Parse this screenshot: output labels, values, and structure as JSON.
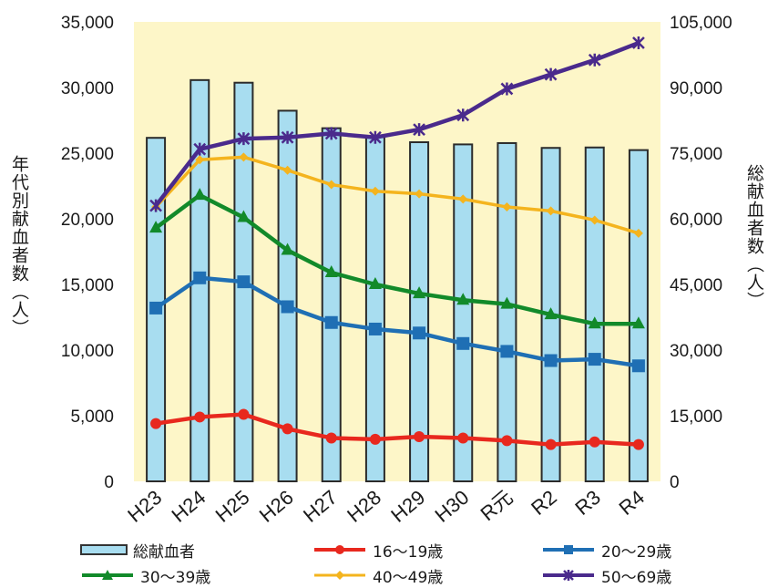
{
  "chart_data": {
    "type": "bar+line",
    "categories": [
      "H23",
      "H24",
      "H25",
      "H26",
      "H27",
      "H28",
      "H29",
      "H30",
      "R元",
      "R2",
      "R3",
      "R4"
    ],
    "left_axis": {
      "label": "年代別献血者数（人）",
      "ylim": [
        0,
        35000
      ],
      "ticks": [
        "0",
        "5,000",
        "10,000",
        "15,000",
        "20,000",
        "25,000",
        "30,000",
        "35,000"
      ]
    },
    "right_axis": {
      "label": "総献血者数（人）",
      "ylim": [
        0,
        105000
      ],
      "ticks": [
        "0",
        "15,000",
        "30,000",
        "45,000",
        "60,000",
        "75,000",
        "90,000",
        "105,000"
      ]
    },
    "bar_series": {
      "name": "総献血者",
      "axis": "right",
      "color": "#a8ddf0",
      "values": [
        78500,
        91700,
        91100,
        84700,
        80700,
        78700,
        77500,
        77000,
        77300,
        76200,
        76300,
        75700
      ]
    },
    "line_series": [
      {
        "name": "16～19歳",
        "color": "#e8281e",
        "marker": "circle",
        "values": [
          4400,
          4900,
          5100,
          4000,
          3300,
          3200,
          3400,
          3300,
          3100,
          2800,
          3000,
          2800
        ]
      },
      {
        "name": "20～29歳",
        "color": "#1f6fb4",
        "marker": "square",
        "values": [
          13200,
          15500,
          15200,
          13300,
          12100,
          11600,
          11300,
          10500,
          9900,
          9200,
          9300,
          8800
        ]
      },
      {
        "name": "30～39歳",
        "color": "#128a2a",
        "marker": "triangle",
        "values": [
          19300,
          21800,
          20100,
          17600,
          15900,
          15000,
          14300,
          13800,
          13500,
          12700,
          12000,
          12000
        ]
      },
      {
        "name": "40～49歳",
        "color": "#f4b41e",
        "marker": "diamond",
        "values": [
          20900,
          24500,
          24700,
          23700,
          22600,
          22100,
          21900,
          21500,
          20900,
          20600,
          19900,
          18900
        ]
      },
      {
        "name": "50～69歳",
        "color": "#4a2a8c",
        "marker": "star",
        "values": [
          21000,
          25300,
          26100,
          26200,
          26500,
          26200,
          26800,
          27900,
          29900,
          31000,
          32100,
          33400
        ]
      }
    ],
    "plot_background": "#fdf6c8",
    "grid": false,
    "legend_position": "bottom"
  }
}
